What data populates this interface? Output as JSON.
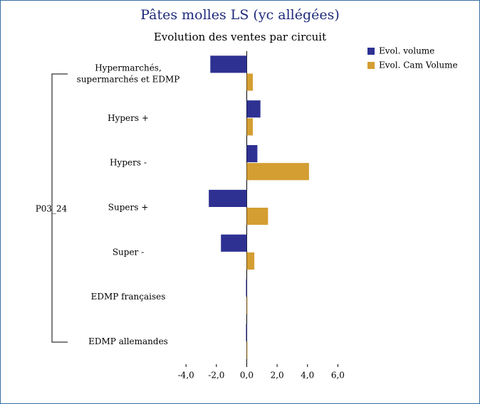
{
  "chart_data": {
    "type": "bar",
    "orientation": "horizontal",
    "title": "Pâtes molles LS (yc allégées)",
    "subtitle": "Evolution des ventes par circuit",
    "group_label": "P03_24",
    "categories": [
      "Hypermarchés, supermarchés et EDMP",
      "Hypers +",
      "Hypers -",
      "Supers +",
      "Super -",
      "EDMP françaises",
      "EDMP allemandes"
    ],
    "series": [
      {
        "name": "Evol. volume",
        "color": "#2e3192",
        "values": [
          -2.4,
          0.9,
          0.7,
          -2.5,
          -1.7,
          -0.05,
          -0.05
        ]
      },
      {
        "name": "Evol. Cam Volume",
        "color": "#d49e32",
        "values": [
          0.4,
          0.4,
          4.1,
          1.4,
          0.5,
          0.02,
          0.02
        ]
      }
    ],
    "xlim": [
      -4,
      6
    ],
    "xticks": [
      {
        "value": -4,
        "label": "-4,0"
      },
      {
        "value": -2,
        "label": "-2,0"
      },
      {
        "value": 0,
        "label": "0,0"
      },
      {
        "value": 2,
        "label": "2,0"
      },
      {
        "value": 4,
        "label": "4,0"
      },
      {
        "value": 6,
        "label": "6,0"
      }
    ],
    "legend": "top-right"
  }
}
